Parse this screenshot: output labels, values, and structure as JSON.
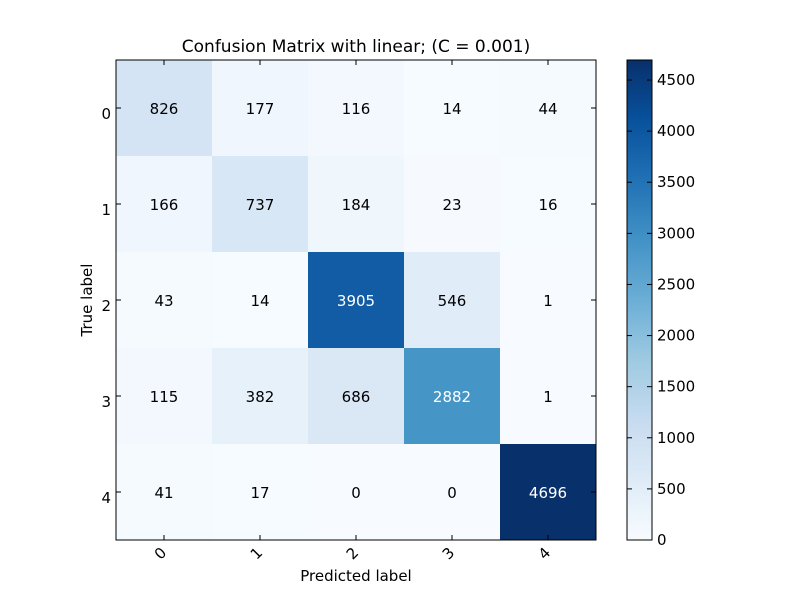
{
  "chart_data": {
    "type": "heatmap",
    "title": "Confusion Matrix with linear; (C = 0.001)",
    "xlabel": "Predicted label",
    "ylabel": "True label",
    "x_tick_labels": [
      "0",
      "1",
      "2",
      "3",
      "4"
    ],
    "y_tick_labels": [
      "0",
      "1",
      "2",
      "3",
      "4"
    ],
    "matrix": [
      [
        826,
        177,
        116,
        14,
        44
      ],
      [
        166,
        737,
        184,
        23,
        16
      ],
      [
        43,
        14,
        3905,
        546,
        1
      ],
      [
        115,
        382,
        686,
        2882,
        1
      ],
      [
        41,
        17,
        0,
        0,
        4696
      ]
    ],
    "colorbar": {
      "colormap": "Blues",
      "vmin": 0,
      "vmax": 4696,
      "tick_values": [
        0,
        500,
        1000,
        1500,
        2000,
        2500,
        3000,
        3500,
        4000,
        4500
      ],
      "tick_labels": [
        "0",
        "500",
        "1000",
        "1500",
        "2000",
        "2500",
        "3000",
        "3500",
        "4000",
        "4500"
      ]
    },
    "grid": false,
    "legend": "colorbar-right"
  }
}
